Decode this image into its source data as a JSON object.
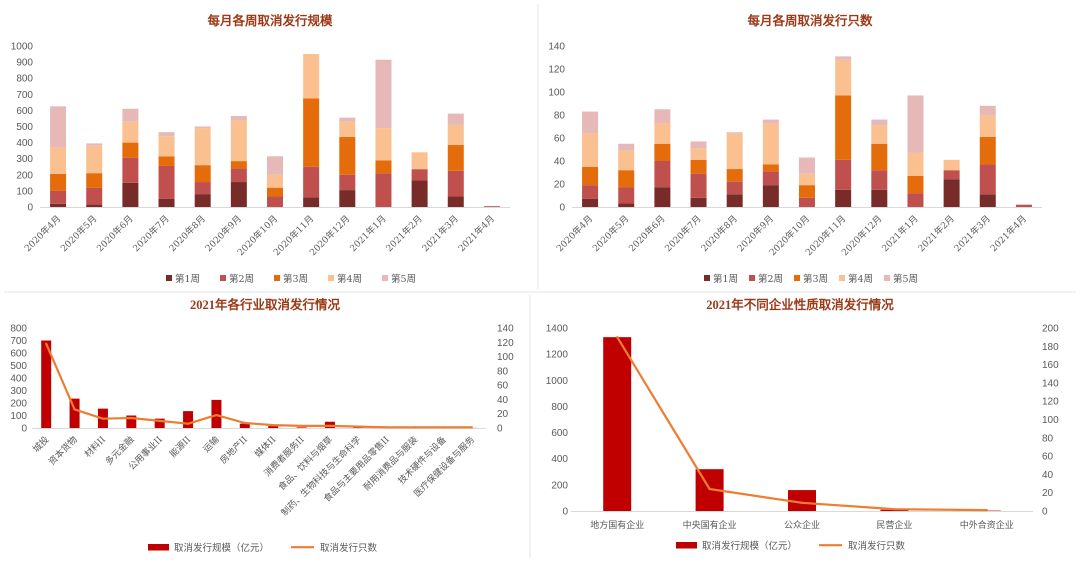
{
  "colors": {
    "title": "#9a3a18",
    "axis_text": "#595959"
  },
  "chart_data": [
    {
      "type": "bar",
      "stacked": true,
      "title": "每月各周取消发行规模",
      "categories": [
        "2020年4月",
        "2020年5月",
        "2020年6月",
        "2020年7月",
        "2020年8月",
        "2020年9月",
        "2020年10月",
        "2020年11月",
        "2020年12月",
        "2021年1月",
        "2021年2月",
        "2021年3月",
        "2021年4月"
      ],
      "series": [
        {
          "name": "第1周",
          "color": "#772c2a",
          "values": [
            20,
            15,
            150,
            50,
            80,
            155,
            0,
            60,
            105,
            0,
            165,
            65,
            0
          ]
        },
        {
          "name": "第2周",
          "color": "#c0504d",
          "values": [
            80,
            105,
            155,
            205,
            75,
            85,
            65,
            190,
            95,
            210,
            70,
            160,
            5
          ]
        },
        {
          "name": "第3周",
          "color": "#e46c0a",
          "values": [
            105,
            90,
            95,
            60,
            105,
            45,
            55,
            425,
            235,
            80,
            0,
            160,
            0
          ]
        },
        {
          "name": "第4周",
          "color": "#fac090",
          "values": [
            165,
            170,
            130,
            125,
            230,
            255,
            80,
            275,
            95,
            200,
            105,
            125,
            0
          ]
        },
        {
          "name": "第5周",
          "color": "#e6b9b8",
          "values": [
            255,
            15,
            80,
            25,
            10,
            25,
            115,
            0,
            25,
            425,
            0,
            70,
            0
          ]
        }
      ],
      "ylim": [
        0,
        1000
      ],
      "y_tick_labels": [
        "0",
        "100",
        "200",
        "300",
        "400",
        "500",
        "600",
        "700",
        "800",
        "900",
        "1000"
      ],
      "grid": false,
      "legend": "bottom"
    },
    {
      "type": "bar",
      "stacked": true,
      "title": "每月各周取消发行只数",
      "categories": [
        "2020年4月",
        "2020年5月",
        "2020年6月",
        "2020年7月",
        "2020年8月",
        "2020年9月",
        "2020年10月",
        "2020年11月",
        "2020年12月",
        "2021年1月",
        "2021年2月",
        "2021年3月",
        "2021年4月"
      ],
      "series": [
        {
          "name": "第1周",
          "color": "#772c2a",
          "values": [
            7,
            3,
            17,
            8,
            11,
            19,
            0,
            15,
            15,
            0,
            24,
            11,
            0
          ]
        },
        {
          "name": "第2周",
          "color": "#c0504d",
          "values": [
            12,
            14,
            23,
            21,
            11,
            12,
            8,
            26,
            17,
            12,
            8,
            26,
            2
          ]
        },
        {
          "name": "第3周",
          "color": "#e46c0a",
          "values": [
            16,
            15,
            15,
            12,
            11,
            6,
            11,
            56,
            23,
            15,
            0,
            24,
            0
          ]
        },
        {
          "name": "第4周",
          "color": "#fac090",
          "values": [
            29,
            17,
            18,
            10,
            31,
            36,
            10,
            31,
            16,
            20,
            9,
            19,
            0
          ]
        },
        {
          "name": "第5周",
          "color": "#e6b9b8",
          "values": [
            19,
            6,
            12,
            6,
            1,
            3,
            14,
            3,
            5,
            50,
            0,
            8,
            0
          ]
        }
      ],
      "ylim": [
        0,
        140
      ],
      "y_tick_labels": [
        "0",
        "20",
        "40",
        "60",
        "80",
        "100",
        "120",
        "140"
      ],
      "grid": false,
      "legend": "bottom"
    },
    {
      "type": "bar",
      "stacked": false,
      "title": "2021年各行业取消发行情况",
      "categories": [
        "城投",
        "资本货物",
        "材料II",
        "多元金融",
        "公用事业II",
        "能源II",
        "运输",
        "房地产II",
        "媒体II",
        "消费者服务II",
        "食品、饮料与烟草",
        "制药、生物科技与生命科学",
        "食品与主要用品零售II",
        "耐用消费品与服装",
        "技术硬件与设备",
        "医疗保健设备与服务"
      ],
      "series": [
        {
          "name": "取消发行规模（亿元）",
          "type": "bar",
          "axis": "left",
          "color": "#c00000",
          "values": [
            700,
            235,
            155,
            100,
            75,
            135,
            225,
            35,
            15,
            5,
            50,
            5,
            3,
            2,
            2,
            1
          ]
        },
        {
          "name": "取消发行只数",
          "type": "line",
          "axis": "right",
          "color": "#ed7d31",
          "values": [
            118,
            26,
            13,
            14,
            10,
            6,
            18,
            7,
            4,
            3,
            3,
            2,
            1,
            1,
            1,
            1
          ]
        }
      ],
      "ylim": [
        0,
        800
      ],
      "y_tick_labels": [
        "0",
        "100",
        "200",
        "300",
        "400",
        "500",
        "600",
        "700",
        "800"
      ],
      "y2lim": [
        0,
        140
      ],
      "y2_tick_labels": [
        "0",
        "20",
        "40",
        "60",
        "80",
        "100",
        "120",
        "140"
      ],
      "grid": false,
      "legend": "bottom"
    },
    {
      "type": "bar",
      "stacked": false,
      "title": "2021年不同企业性质取消发行情况",
      "categories": [
        "地方国有企业",
        "中央国有企业",
        "公众企业",
        "民营企业",
        "中外合资企业"
      ],
      "series": [
        {
          "name": "取消发行规模（亿元）",
          "type": "bar",
          "axis": "left",
          "color": "#c00000",
          "values": [
            1330,
            320,
            160,
            10,
            3
          ]
        },
        {
          "name": "取消发行只数",
          "type": "line",
          "axis": "right",
          "color": "#ed7d31",
          "values": [
            190,
            24,
            9,
            2,
            1
          ]
        }
      ],
      "ylim": [
        0,
        1400
      ],
      "y_tick_labels": [
        "0",
        "200",
        "400",
        "600",
        "800",
        "1000",
        "1200",
        "1400"
      ],
      "y2lim": [
        0,
        200
      ],
      "y2_tick_labels": [
        "0",
        "20",
        "40",
        "60",
        "80",
        "100",
        "120",
        "140",
        "160",
        "180",
        "200"
      ],
      "grid": false,
      "legend": "bottom"
    }
  ]
}
